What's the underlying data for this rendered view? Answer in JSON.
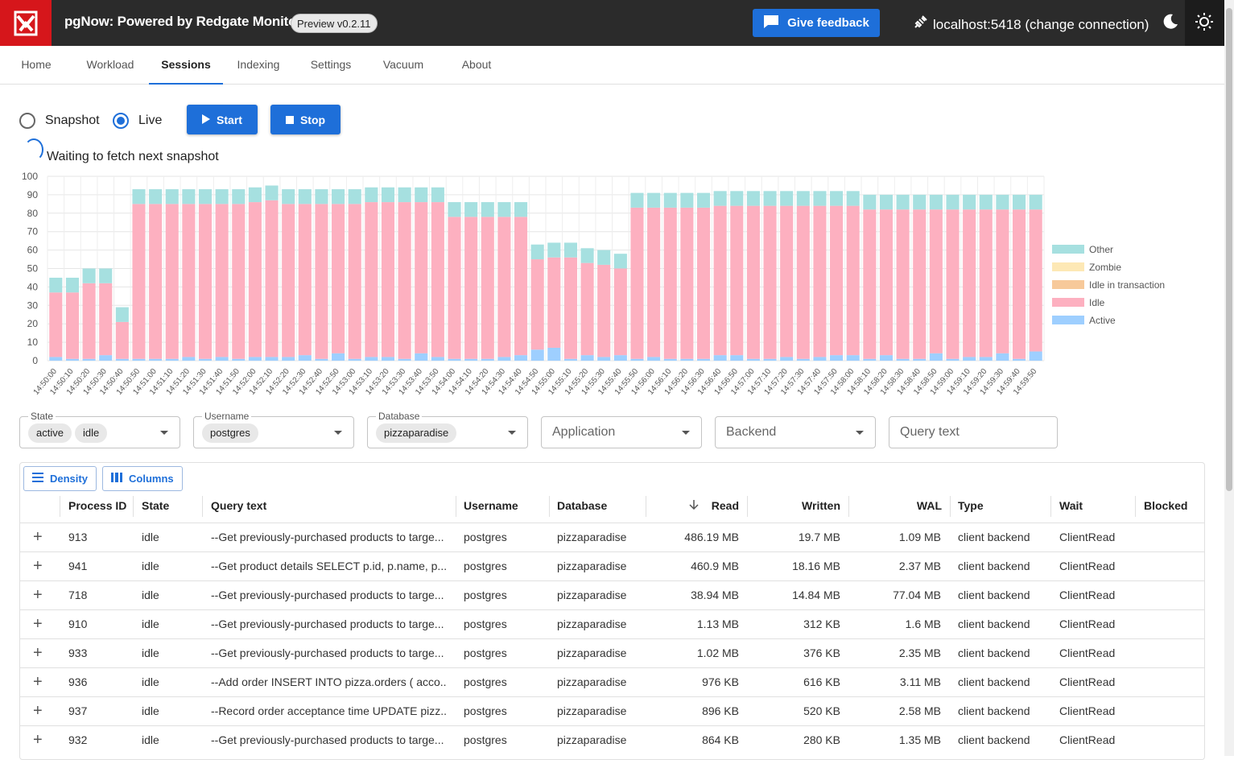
{
  "app": {
    "title": "pgNow: Powered by Redgate Monitor",
    "version": "Preview v0.2.11",
    "feedback_label": "Give feedback",
    "connection_label": "localhost:5418 (change connection)"
  },
  "tabs": [
    {
      "label": "Home"
    },
    {
      "label": "Workload"
    },
    {
      "label": "Sessions"
    },
    {
      "label": "Indexing"
    },
    {
      "label": "Settings"
    },
    {
      "label": "Vacuum"
    },
    {
      "label": "About"
    }
  ],
  "controls": {
    "snapshot_label": "Snapshot",
    "live_label": "Live",
    "mode": "Live",
    "start_label": "Start",
    "stop_label": "Stop",
    "status_text": "Waiting to fetch next snapshot"
  },
  "chart_data": {
    "type": "bar",
    "stacked": true,
    "ylim": [
      0,
      100
    ],
    "yticks": [
      0,
      10,
      20,
      30,
      40,
      50,
      60,
      70,
      80,
      90,
      100
    ],
    "grid": true,
    "legend_position": "right",
    "categories": [
      "14:50:00",
      "14:50:10",
      "14:50:20",
      "14:50:30",
      "14:50:40",
      "14:50:50",
      "14:51:00",
      "14:51:10",
      "14:51:20",
      "14:51:30",
      "14:51:40",
      "14:51:50",
      "14:52:00",
      "14:52:10",
      "14:52:20",
      "14:52:30",
      "14:52:40",
      "14:52:50",
      "14:53:00",
      "14:53:10",
      "14:53:20",
      "14:53:30",
      "14:53:40",
      "14:53:50",
      "14:54:00",
      "14:54:10",
      "14:54:20",
      "14:54:30",
      "14:54:40",
      "14:54:50",
      "14:55:00",
      "14:55:10",
      "14:55:20",
      "14:55:30",
      "14:55:40",
      "14:55:50",
      "14:56:00",
      "14:56:10",
      "14:56:20",
      "14:56:30",
      "14:56:40",
      "14:56:50",
      "14:57:00",
      "14:57:10",
      "14:57:20",
      "14:57:30",
      "14:57:40",
      "14:57:50",
      "14:58:00",
      "14:58:10",
      "14:58:20",
      "14:58:30",
      "14:58:40",
      "14:58:50",
      "14:59:00",
      "14:59:10",
      "14:59:20",
      "14:59:30",
      "14:59:40",
      "14:59:50"
    ],
    "series": [
      {
        "name": "Active",
        "color": "#9ecfff",
        "values": [
          2,
          1,
          1,
          3,
          1,
          1,
          1,
          1,
          2,
          1,
          2,
          1,
          2,
          2,
          2,
          3,
          1,
          4,
          1,
          2,
          2,
          1,
          4,
          2,
          1,
          1,
          1,
          2,
          3,
          6,
          7,
          1,
          3,
          2,
          3,
          1,
          2,
          1,
          1,
          1,
          3,
          3,
          1,
          1,
          2,
          1,
          2,
          3,
          3,
          1,
          3,
          1,
          1,
          4,
          1,
          2,
          2,
          4,
          1,
          5
        ]
      },
      {
        "name": "Idle",
        "color": "#fdb0c0",
        "values": [
          35,
          36,
          41,
          39,
          20,
          84,
          84,
          84,
          83,
          84,
          83,
          84,
          84,
          85,
          83,
          82,
          84,
          81,
          84,
          84,
          84,
          85,
          82,
          84,
          77,
          77,
          77,
          76,
          75,
          49,
          49,
          55,
          50,
          50,
          47,
          82,
          81,
          82,
          82,
          82,
          81,
          81,
          83,
          83,
          82,
          83,
          82,
          81,
          81,
          81,
          79,
          81,
          81,
          78,
          81,
          80,
          80,
          78,
          81,
          77
        ]
      },
      {
        "name": "Idle in transaction",
        "color": "#f7c99a",
        "values": [
          0,
          0,
          0,
          0,
          0,
          0,
          0,
          0,
          0,
          0,
          0,
          0,
          0,
          0,
          0,
          0,
          0,
          0,
          0,
          0,
          0,
          0,
          0,
          0,
          0,
          0,
          0,
          0,
          0,
          0,
          0,
          0,
          0,
          0,
          0,
          0,
          0,
          0,
          0,
          0,
          0,
          0,
          0,
          0,
          0,
          0,
          0,
          0,
          0,
          0,
          0,
          0,
          0,
          0,
          0,
          0,
          0,
          0,
          0,
          0
        ]
      },
      {
        "name": "Zombie",
        "color": "#fde8b5",
        "values": [
          0,
          0,
          0,
          0,
          0,
          0,
          0,
          0,
          0,
          0,
          0,
          0,
          0,
          0,
          0,
          0,
          0,
          0,
          0,
          0,
          0,
          0,
          0,
          0,
          0,
          0,
          0,
          0,
          0,
          0,
          0,
          0,
          0,
          0,
          0,
          0,
          0,
          0,
          0,
          0,
          0,
          0,
          0,
          0,
          0,
          0,
          0,
          0,
          0,
          0,
          0,
          0,
          0,
          0,
          0,
          0,
          0,
          0,
          0,
          0
        ]
      },
      {
        "name": "Other",
        "color": "#a6e0e0",
        "values": [
          8,
          8,
          8,
          8,
          8,
          8,
          8,
          8,
          8,
          8,
          8,
          8,
          8,
          8,
          8,
          8,
          8,
          8,
          8,
          8,
          8,
          8,
          8,
          8,
          8,
          8,
          8,
          8,
          8,
          8,
          8,
          8,
          8,
          8,
          8,
          8,
          8,
          8,
          8,
          8,
          8,
          8,
          8,
          8,
          8,
          8,
          8,
          8,
          8,
          8,
          8,
          8,
          8,
          8,
          8,
          8,
          8,
          8,
          8,
          8
        ]
      }
    ]
  },
  "filters": [
    {
      "label": "State",
      "chips": [
        "active",
        "idle"
      ],
      "placeholder": ""
    },
    {
      "label": "Username",
      "chips": [
        "postgres"
      ],
      "placeholder": ""
    },
    {
      "label": "Database",
      "chips": [
        "pizzaparadise"
      ],
      "placeholder": ""
    },
    {
      "label": "",
      "chips": [],
      "placeholder": "Application"
    },
    {
      "label": "",
      "chips": [],
      "placeholder": "Backend"
    },
    {
      "label": "",
      "chips": [],
      "placeholder": "Query text"
    }
  ],
  "toolbar": {
    "density_label": "Density",
    "columns_label": "Columns"
  },
  "table": {
    "columns": [
      "Process ID",
      "State",
      "Query text",
      "Username",
      "Database",
      "Read",
      "Written",
      "WAL",
      "Type",
      "Wait",
      "Blocked"
    ],
    "rows": [
      [
        "913",
        "idle",
        "--Get previously-purchased products to targe...",
        "postgres",
        "pizzaparadise",
        "486.19 MB",
        "19.7 MB",
        "1.09 MB",
        "client backend",
        "ClientRead",
        ""
      ],
      [
        "941",
        "idle",
        "--Get product details SELECT p.id, p.name, p....",
        "postgres",
        "pizzaparadise",
        "460.9 MB",
        "18.16 MB",
        "2.37 MB",
        "client backend",
        "ClientRead",
        ""
      ],
      [
        "718",
        "idle",
        "--Get previously-purchased products to targe...",
        "postgres",
        "pizzaparadise",
        "38.94 MB",
        "14.84 MB",
        "77.04 MB",
        "client backend",
        "ClientRead",
        ""
      ],
      [
        "910",
        "idle",
        "--Get previously-purchased products to targe...",
        "postgres",
        "pizzaparadise",
        "1.13 MB",
        "312 KB",
        "1.6 MB",
        "client backend",
        "ClientRead",
        ""
      ],
      [
        "933",
        "idle",
        "--Get previously-purchased products to targe...",
        "postgres",
        "pizzaparadise",
        "1.02 MB",
        "376 KB",
        "2.35 MB",
        "client backend",
        "ClientRead",
        ""
      ],
      [
        "936",
        "idle",
        "--Add order INSERT INTO pizza.orders ( acco...",
        "postgres",
        "pizzaparadise",
        "976 KB",
        "616 KB",
        "3.11 MB",
        "client backend",
        "ClientRead",
        ""
      ],
      [
        "937",
        "idle",
        "--Record order acceptance time UPDATE pizz...",
        "postgres",
        "pizzaparadise",
        "896 KB",
        "520 KB",
        "2.58 MB",
        "client backend",
        "ClientRead",
        ""
      ],
      [
        "932",
        "idle",
        "--Get previously-purchased products to targe...",
        "postgres",
        "pizzaparadise",
        "864 KB",
        "280 KB",
        "1.35 MB",
        "client backend",
        "ClientRead",
        ""
      ]
    ]
  }
}
